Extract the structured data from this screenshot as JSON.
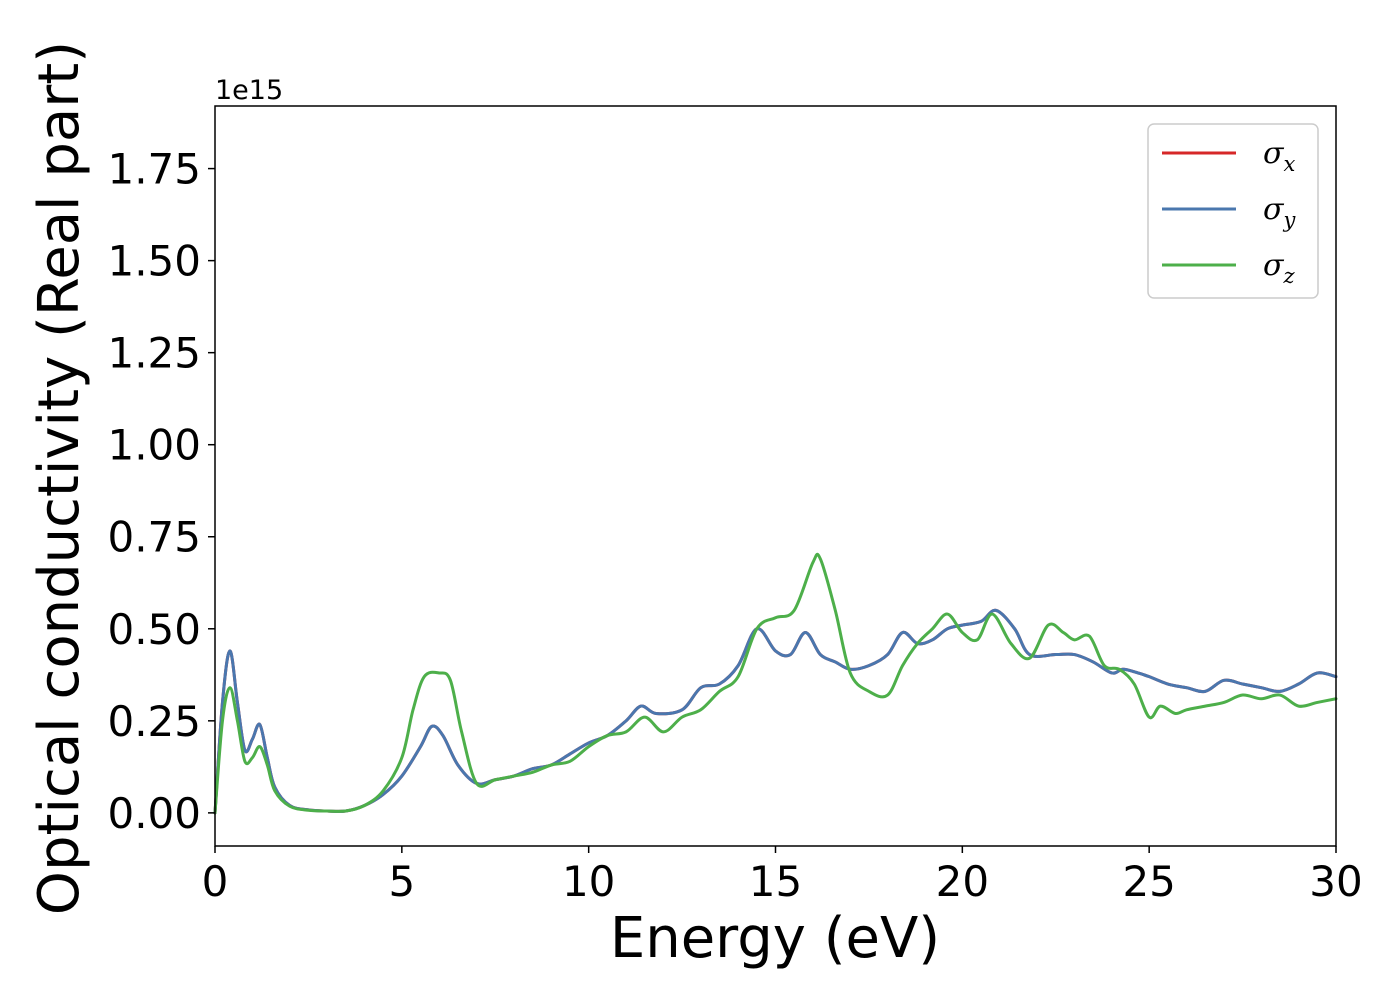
{
  "chart_data": {
    "type": "line",
    "xlabel": "Energy (eV)",
    "ylabel": "Optical conductivity (Real part)",
    "y_offset_text": "1e15",
    "y_scale": 1000000000000000.0,
    "xlim": [
      0,
      30
    ],
    "ylim": [
      -0.09,
      1.92
    ],
    "xticks": [
      0,
      5,
      10,
      15,
      20,
      25,
      30
    ],
    "xtick_labels": [
      "0",
      "5",
      "10",
      "15",
      "20",
      "25",
      "30"
    ],
    "yticks": [
      0.0,
      0.25,
      0.5,
      0.75,
      1.0,
      1.25,
      1.5,
      1.75
    ],
    "ytick_labels": [
      "0.00",
      "0.25",
      "0.50",
      "0.75",
      "1.00",
      "1.25",
      "1.50",
      "1.75"
    ],
    "grid": false,
    "legend_position": "top-right",
    "series": [
      {
        "name": "σ",
        "subscript": "x",
        "color": "#d62728",
        "x": [
          0,
          0.2,
          0.4,
          0.6,
          0.8,
          1.0,
          1.2,
          1.4,
          1.6,
          2.0,
          2.5,
          3.0,
          3.5,
          4.0,
          4.5,
          5.0,
          5.5,
          5.8,
          6.1,
          6.5,
          7.0,
          7.5,
          8.0,
          8.5,
          9.0,
          9.5,
          10.0,
          10.5,
          11.0,
          11.4,
          11.8,
          12.5,
          13.0,
          13.5,
          14.0,
          14.5,
          15.0,
          15.4,
          15.8,
          16.2,
          16.6,
          17.0,
          17.5,
          18.0,
          18.4,
          18.8,
          19.2,
          19.6,
          20.0,
          20.5,
          20.9,
          21.4,
          21.8,
          22.5,
          23.0,
          23.5,
          24.0,
          24.3,
          24.7,
          25.0,
          25.5,
          26.0,
          26.5,
          27.0,
          27.5,
          28.0,
          28.5,
          29.0,
          29.5,
          30.0
        ],
        "values": [
          0.0,
          0.3,
          0.44,
          0.3,
          0.17,
          0.2,
          0.24,
          0.15,
          0.07,
          0.02,
          0.008,
          0.005,
          0.005,
          0.02,
          0.05,
          0.1,
          0.18,
          0.235,
          0.21,
          0.13,
          0.08,
          0.09,
          0.1,
          0.12,
          0.13,
          0.16,
          0.19,
          0.21,
          0.25,
          0.29,
          0.27,
          0.28,
          0.34,
          0.35,
          0.4,
          0.5,
          0.44,
          0.43,
          0.49,
          0.43,
          0.41,
          0.39,
          0.4,
          0.43,
          0.49,
          0.46,
          0.47,
          0.5,
          0.51,
          0.52,
          0.55,
          0.5,
          0.43,
          0.43,
          0.43,
          0.41,
          0.38,
          0.39,
          0.38,
          0.37,
          0.35,
          0.34,
          0.33,
          0.36,
          0.35,
          0.34,
          0.33,
          0.35,
          0.38,
          0.37
        ]
      },
      {
        "name": "σ",
        "subscript": "y",
        "color": "#4a77ae",
        "x": [
          0,
          0.2,
          0.4,
          0.6,
          0.8,
          1.0,
          1.2,
          1.4,
          1.6,
          2.0,
          2.5,
          3.0,
          3.5,
          4.0,
          4.5,
          5.0,
          5.5,
          5.8,
          6.1,
          6.5,
          7.0,
          7.5,
          8.0,
          8.5,
          9.0,
          9.5,
          10.0,
          10.5,
          11.0,
          11.4,
          11.8,
          12.5,
          13.0,
          13.5,
          14.0,
          14.5,
          15.0,
          15.4,
          15.8,
          16.2,
          16.6,
          17.0,
          17.5,
          18.0,
          18.4,
          18.8,
          19.2,
          19.6,
          20.0,
          20.5,
          20.9,
          21.4,
          21.8,
          22.5,
          23.0,
          23.5,
          24.0,
          24.3,
          24.7,
          25.0,
          25.5,
          26.0,
          26.5,
          27.0,
          27.5,
          28.0,
          28.5,
          29.0,
          29.5,
          30.0
        ],
        "values": [
          0.0,
          0.3,
          0.44,
          0.3,
          0.17,
          0.2,
          0.24,
          0.15,
          0.07,
          0.02,
          0.008,
          0.005,
          0.005,
          0.02,
          0.05,
          0.1,
          0.18,
          0.235,
          0.21,
          0.13,
          0.08,
          0.09,
          0.1,
          0.12,
          0.13,
          0.16,
          0.19,
          0.21,
          0.25,
          0.29,
          0.27,
          0.28,
          0.34,
          0.35,
          0.4,
          0.5,
          0.44,
          0.43,
          0.49,
          0.43,
          0.41,
          0.39,
          0.4,
          0.43,
          0.49,
          0.46,
          0.47,
          0.5,
          0.51,
          0.52,
          0.55,
          0.5,
          0.43,
          0.43,
          0.43,
          0.41,
          0.38,
          0.39,
          0.38,
          0.37,
          0.35,
          0.34,
          0.33,
          0.36,
          0.35,
          0.34,
          0.33,
          0.35,
          0.38,
          0.37
        ]
      },
      {
        "name": "σ",
        "subscript": "z",
        "color": "#4daf4a",
        "x": [
          0,
          0.2,
          0.4,
          0.6,
          0.8,
          1.0,
          1.2,
          1.4,
          1.6,
          2.0,
          2.5,
          3.0,
          3.5,
          4.0,
          4.5,
          5.0,
          5.3,
          5.6,
          6.0,
          6.3,
          6.6,
          7.0,
          7.5,
          8.0,
          8.5,
          9.0,
          9.5,
          10.0,
          10.5,
          11.0,
          11.5,
          12.0,
          12.5,
          13.0,
          13.5,
          14.0,
          14.5,
          15.0,
          15.5,
          16.0,
          16.2,
          16.6,
          17.0,
          17.5,
          18.0,
          18.4,
          18.8,
          19.2,
          19.6,
          20.0,
          20.4,
          20.8,
          21.3,
          21.8,
          22.3,
          22.7,
          23.0,
          23.4,
          23.8,
          24.2,
          24.6,
          25.0,
          25.3,
          25.7,
          26.0,
          26.5,
          27.0,
          27.5,
          28.0,
          28.5,
          29.0,
          29.5,
          30.0
        ],
        "values": [
          0.0,
          0.25,
          0.34,
          0.25,
          0.14,
          0.15,
          0.18,
          0.13,
          0.06,
          0.018,
          0.007,
          0.005,
          0.005,
          0.02,
          0.06,
          0.15,
          0.28,
          0.37,
          0.38,
          0.36,
          0.22,
          0.08,
          0.09,
          0.1,
          0.11,
          0.13,
          0.14,
          0.18,
          0.21,
          0.22,
          0.26,
          0.22,
          0.26,
          0.28,
          0.33,
          0.37,
          0.5,
          0.53,
          0.55,
          0.68,
          0.69,
          0.55,
          0.38,
          0.33,
          0.32,
          0.4,
          0.46,
          0.5,
          0.54,
          0.49,
          0.47,
          0.54,
          0.46,
          0.42,
          0.51,
          0.49,
          0.47,
          0.48,
          0.4,
          0.39,
          0.35,
          0.26,
          0.29,
          0.27,
          0.28,
          0.29,
          0.3,
          0.32,
          0.31,
          0.32,
          0.29,
          0.3,
          0.31
        ]
      }
    ]
  }
}
